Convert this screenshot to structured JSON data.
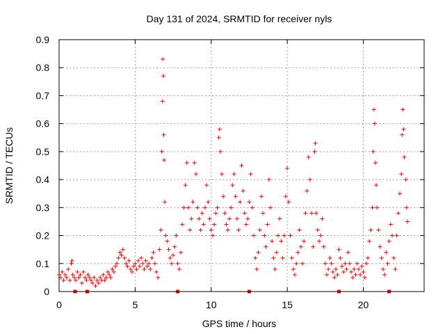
{
  "chart_data": {
    "type": "scatter",
    "title": "Day 131 of 2024, SRMTID for receiver nyls",
    "xlabel": "GPS time / hours",
    "ylabel": "SRMTID / TECUs",
    "xlim": [
      0,
      24
    ],
    "ylim": [
      0,
      0.9
    ],
    "xticks": [
      0,
      5,
      10,
      15,
      20
    ],
    "xtick_labels": [
      "0",
      "5",
      "10",
      "15",
      "20"
    ],
    "yticks": [
      0,
      0.1,
      0.2,
      0.3,
      0.4,
      0.5,
      0.6,
      0.7,
      0.8,
      0.9
    ],
    "ytick_labels": [
      "0",
      "0.1",
      "0.2",
      "0.3",
      "0.4",
      "0.5",
      "0.6",
      "0.7",
      "0.8",
      "0.9"
    ],
    "grid": true,
    "marker": "+",
    "color": "#ff0000",
    "series": [
      {
        "name": "SRMTID",
        "points": [
          [
            0.0,
            0.06
          ],
          [
            0.1,
            0.05
          ],
          [
            0.2,
            0.07
          ],
          [
            0.3,
            0.04
          ],
          [
            0.4,
            0.06
          ],
          [
            0.5,
            0.05
          ],
          [
            0.6,
            0.08
          ],
          [
            0.7,
            0.04
          ],
          [
            0.8,
            0.1
          ],
          [
            0.85,
            0.11
          ],
          [
            0.9,
            0.06
          ],
          [
            1.0,
            0.05
          ],
          [
            1.1,
            0.04
          ],
          [
            1.2,
            0.07
          ],
          [
            1.3,
            0.05
          ],
          [
            1.4,
            0.06
          ],
          [
            1.5,
            0.03
          ],
          [
            1.6,
            0.07
          ],
          [
            1.7,
            0.05
          ],
          [
            1.8,
            0.04
          ],
          [
            1.9,
            0.06
          ],
          [
            2.0,
            0.05
          ],
          [
            2.1,
            0.04
          ],
          [
            2.2,
            0.03
          ],
          [
            2.3,
            0.05
          ],
          [
            2.4,
            0.02
          ],
          [
            2.5,
            0.04
          ],
          [
            2.6,
            0.03
          ],
          [
            2.7,
            0.05
          ],
          [
            2.8,
            0.04
          ],
          [
            2.9,
            0.06
          ],
          [
            3.0,
            0.04
          ],
          [
            3.1,
            0.05
          ],
          [
            3.2,
            0.07
          ],
          [
            3.3,
            0.06
          ],
          [
            3.4,
            0.05
          ],
          [
            3.5,
            0.08
          ],
          [
            3.6,
            0.07
          ],
          [
            3.7,
            0.09
          ],
          [
            3.8,
            0.1
          ],
          [
            3.9,
            0.12
          ],
          [
            4.0,
            0.14
          ],
          [
            4.1,
            0.13
          ],
          [
            4.2,
            0.15
          ],
          [
            4.3,
            0.12
          ],
          [
            4.4,
            0.1
          ],
          [
            4.5,
            0.09
          ],
          [
            4.6,
            0.11
          ],
          [
            4.7,
            0.08
          ],
          [
            4.8,
            0.07
          ],
          [
            4.9,
            0.09
          ],
          [
            5.0,
            0.1
          ],
          [
            5.1,
            0.08
          ],
          [
            5.2,
            0.11
          ],
          [
            5.3,
            0.09
          ],
          [
            5.4,
            0.12
          ],
          [
            5.5,
            0.1
          ],
          [
            5.6,
            0.08
          ],
          [
            5.7,
            0.11
          ],
          [
            5.8,
            0.09
          ],
          [
            5.9,
            0.1
          ],
          [
            6.0,
            0.08
          ],
          [
            6.1,
            0.12
          ],
          [
            6.2,
            0.14
          ],
          [
            6.3,
            0.1
          ],
          [
            6.4,
            0.07
          ],
          [
            6.5,
            0.05
          ],
          [
            6.6,
            0.15
          ],
          [
            6.7,
            0.22
          ],
          [
            6.75,
            0.5
          ],
          [
            6.8,
            0.68
          ],
          [
            6.82,
            0.83
          ],
          [
            6.85,
            0.77
          ],
          [
            6.88,
            0.56
          ],
          [
            6.9,
            0.47
          ],
          [
            6.95,
            0.32
          ],
          [
            7.0,
            0.2
          ],
          [
            7.1,
            0.18
          ],
          [
            7.2,
            0.15
          ],
          [
            7.3,
            0.12
          ],
          [
            7.4,
            0.1
          ],
          [
            7.5,
            0.13
          ],
          [
            7.6,
            0.16
          ],
          [
            7.7,
            0.2
          ],
          [
            7.8,
            0.1
          ],
          [
            7.9,
            0.08
          ],
          [
            8.0,
            0.14
          ],
          [
            8.1,
            0.24
          ],
          [
            8.2,
            0.3
          ],
          [
            8.3,
            0.38
          ],
          [
            8.4,
            0.46
          ],
          [
            8.5,
            0.3
          ],
          [
            8.6,
            0.22
          ],
          [
            8.7,
            0.26
          ],
          [
            8.8,
            0.32
          ],
          [
            8.9,
            0.46
          ],
          [
            9.0,
            0.42
          ],
          [
            9.1,
            0.3
          ],
          [
            9.2,
            0.26
          ],
          [
            9.3,
            0.22
          ],
          [
            9.4,
            0.28
          ],
          [
            9.5,
            0.24
          ],
          [
            9.6,
            0.3
          ],
          [
            9.7,
            0.38
          ],
          [
            9.8,
            0.32
          ],
          [
            9.9,
            0.26
          ],
          [
            10.0,
            0.22
          ],
          [
            10.1,
            0.2
          ],
          [
            10.2,
            0.24
          ],
          [
            10.3,
            0.28
          ],
          [
            10.4,
            0.3
          ],
          [
            10.5,
            0.55
          ],
          [
            10.55,
            0.58
          ],
          [
            10.6,
            0.5
          ],
          [
            10.7,
            0.42
          ],
          [
            10.8,
            0.34
          ],
          [
            10.9,
            0.28
          ],
          [
            11.0,
            0.24
          ],
          [
            11.1,
            0.22
          ],
          [
            11.2,
            0.26
          ],
          [
            11.3,
            0.3
          ],
          [
            11.4,
            0.38
          ],
          [
            11.5,
            0.42
          ],
          [
            11.6,
            0.34
          ],
          [
            11.7,
            0.26
          ],
          [
            11.8,
            0.22
          ],
          [
            11.9,
            0.32
          ],
          [
            12.0,
            0.45
          ],
          [
            12.1,
            0.36
          ],
          [
            12.2,
            0.28
          ],
          [
            12.3,
            0.24
          ],
          [
            12.4,
            0.26
          ],
          [
            12.5,
            0.32
          ],
          [
            12.6,
            0.42
          ],
          [
            12.7,
            0.3
          ],
          [
            12.8,
            0.2
          ],
          [
            12.9,
            0.12
          ],
          [
            13.0,
            0.08
          ],
          [
            13.1,
            0.14
          ],
          [
            13.2,
            0.22
          ],
          [
            13.3,
            0.34
          ],
          [
            13.4,
            0.28
          ],
          [
            13.5,
            0.2
          ],
          [
            13.6,
            0.16
          ],
          [
            13.7,
            0.24
          ],
          [
            13.8,
            0.4
          ],
          [
            13.9,
            0.3
          ],
          [
            14.0,
            0.18
          ],
          [
            14.1,
            0.12
          ],
          [
            14.2,
            0.08
          ],
          [
            14.3,
            0.14
          ],
          [
            14.4,
            0.2
          ],
          [
            14.5,
            0.26
          ],
          [
            14.6,
            0.18
          ],
          [
            14.7,
            0.12
          ],
          [
            14.8,
            0.2
          ],
          [
            14.9,
            0.34
          ],
          [
            15.0,
            0.44
          ],
          [
            15.1,
            0.32
          ],
          [
            15.2,
            0.2
          ],
          [
            15.3,
            0.12
          ],
          [
            15.4,
            0.08
          ],
          [
            15.5,
            0.06
          ],
          [
            15.6,
            0.1
          ],
          [
            15.7,
            0.14
          ],
          [
            15.8,
            0.22
          ],
          [
            15.9,
            0.16
          ],
          [
            16.0,
            0.1
          ],
          [
            16.1,
            0.18
          ],
          [
            16.2,
            0.28
          ],
          [
            16.3,
            0.36
          ],
          [
            16.4,
            0.48
          ],
          [
            16.5,
            0.4
          ],
          [
            16.6,
            0.28
          ],
          [
            16.7,
            0.16
          ],
          [
            16.8,
            0.5
          ],
          [
            16.85,
            0.53
          ],
          [
            16.9,
            0.28
          ],
          [
            17.0,
            0.22
          ],
          [
            17.1,
            0.18
          ],
          [
            17.2,
            0.2
          ],
          [
            17.3,
            0.26
          ],
          [
            17.4,
            0.16
          ],
          [
            17.5,
            0.1
          ],
          [
            17.6,
            0.06
          ],
          [
            17.7,
            0.08
          ],
          [
            17.8,
            0.12
          ],
          [
            17.9,
            0.1
          ],
          [
            18.0,
            0.07
          ],
          [
            18.1,
            0.05
          ],
          [
            18.2,
            0.08
          ],
          [
            18.3,
            0.06
          ],
          [
            18.4,
            0.15
          ],
          [
            18.5,
            0.12
          ],
          [
            18.6,
            0.09
          ],
          [
            18.7,
            0.07
          ],
          [
            18.8,
            0.1
          ],
          [
            18.9,
            0.08
          ],
          [
            19.0,
            0.14
          ],
          [
            19.1,
            0.1
          ],
          [
            19.2,
            0.07
          ],
          [
            19.3,
            0.05
          ],
          [
            19.4,
            0.08
          ],
          [
            19.5,
            0.06
          ],
          [
            19.6,
            0.1
          ],
          [
            19.7,
            0.08
          ],
          [
            19.8,
            0.06
          ],
          [
            19.9,
            0.09
          ],
          [
            20.0,
            0.07
          ],
          [
            20.1,
            0.05
          ],
          [
            20.2,
            0.1
          ],
          [
            20.3,
            0.12
          ],
          [
            20.4,
            0.18
          ],
          [
            20.5,
            0.22
          ],
          [
            20.6,
            0.3
          ],
          [
            20.65,
            0.5
          ],
          [
            20.7,
            0.65
          ],
          [
            20.75,
            0.6
          ],
          [
            20.8,
            0.46
          ],
          [
            20.85,
            0.38
          ],
          [
            20.9,
            0.3
          ],
          [
            21.0,
            0.22
          ],
          [
            21.1,
            0.16
          ],
          [
            21.2,
            0.12
          ],
          [
            21.3,
            0.08
          ],
          [
            21.4,
            0.06
          ],
          [
            21.5,
            0.14
          ],
          [
            21.6,
            0.1
          ],
          [
            21.7,
            0.18
          ],
          [
            21.8,
            0.24
          ],
          [
            21.9,
            0.2
          ],
          [
            22.0,
            0.12
          ],
          [
            22.1,
            0.08
          ],
          [
            22.2,
            0.2
          ],
          [
            22.3,
            0.28
          ],
          [
            22.4,
            0.35
          ],
          [
            22.5,
            0.42
          ],
          [
            22.55,
            0.56
          ],
          [
            22.6,
            0.65
          ],
          [
            22.65,
            0.58
          ],
          [
            22.7,
            0.48
          ],
          [
            22.8,
            0.4
          ],
          [
            22.85,
            0.3
          ],
          [
            22.9,
            0.25
          ]
        ]
      }
    ],
    "axis_markers": [
      1.05,
      1.85,
      7.8,
      12.5,
      18.4,
      21.7
    ]
  }
}
